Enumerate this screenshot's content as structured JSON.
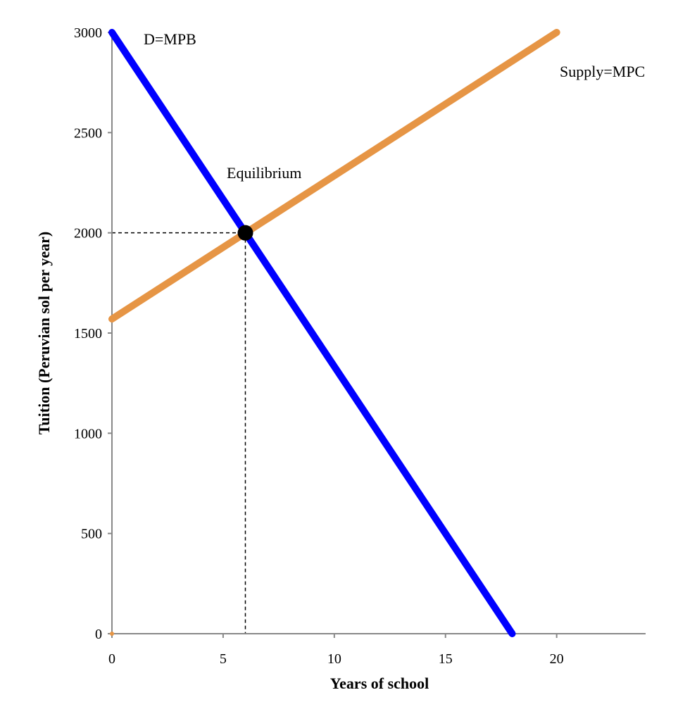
{
  "chart_data": {
    "type": "line",
    "xlabel": "Years of school",
    "ylabel": "Tuition (Peruvian sol per year)",
    "xlim": [
      0,
      24
    ],
    "ylim": [
      0,
      3000
    ],
    "x_ticks": [
      "0",
      "5",
      "10",
      "15",
      "20"
    ],
    "y_ticks": [
      "0",
      "500",
      "1000",
      "1500",
      "2000",
      "2500",
      "3000"
    ],
    "grid": false,
    "series": [
      {
        "name": "D=MPB",
        "color": "#0000ff",
        "x": [
          0,
          18
        ],
        "y": [
          3000,
          0
        ]
      },
      {
        "name": "Supply=MPC",
        "color": "#e69545",
        "x": [
          0,
          20
        ],
        "y": [
          1570,
          3000
        ]
      }
    ],
    "equilibrium": {
      "label": "Equilibrium",
      "x": 6,
      "y": 2000
    },
    "annotations": [
      {
        "text": "D=MPB"
      },
      {
        "text": "Supply=MPC"
      },
      {
        "text": "Equilibrium"
      }
    ]
  }
}
